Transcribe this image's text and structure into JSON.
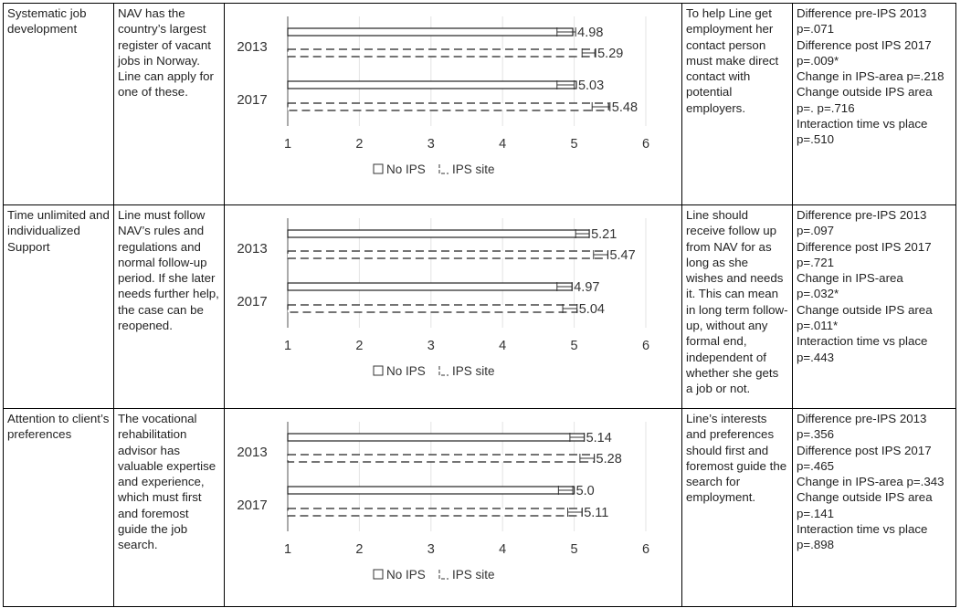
{
  "rows": [
    {
      "label": "Systematic job development",
      "practice": "NAV has the country’s largest register of vacant jobs in Norway. Line can apply for one of these.",
      "ideal": "To help Line get employment her contact person must make direct contact with potential employers.",
      "stats": [
        "Difference pre-IPS 2013",
        "p=.071",
        "Difference post IPS 2017",
        "p=.009*",
        "Change in IPS-area p=.218",
        "Change outside IPS area",
        "p=. p=.716",
        "Interaction time vs place",
        "p=.510"
      ]
    },
    {
      "label": "Time unlimited and individualized Support",
      "practice": "Line must follow NAV’s rules and regulations and normal follow-up period. If she later needs further help, the case can be reopened.",
      "ideal": "Line should receive follow up from NAV for as long as she wishes and needs it. This can mean in long term follow-up, without any formal end, independent of whether she gets a job or not.",
      "stats": [
        "Difference pre-IPS 2013",
        "p=.097",
        "Difference post IPS 2017",
        "p=.721",
        "Change in IPS-area",
        "p=.032*",
        "Change outside IPS area",
        "p=.011*",
        "Interaction time vs place",
        "p=.443"
      ]
    },
    {
      "label": "Attention to client’s preferences",
      "practice": "The vocational rehabilitation advisor has valuable expertise and experience, which must first and foremost guide the job search.",
      "ideal": "Line’s interests and preferences should first and foremost guide the search for employment.",
      "stats": [
        "Difference pre-IPS 2013",
        "p=.356",
        "Difference post IPS 2017",
        "p=.465",
        "Change in IPS-area p=.343",
        "Change outside IPS area",
        "p=.141",
        "Interaction time vs place",
        "p=.898"
      ]
    }
  ],
  "chart_data": [
    {
      "type": "bar",
      "orientation": "horizontal",
      "categories": [
        "2013",
        "2017"
      ],
      "series": [
        {
          "name": "No IPS",
          "values": [
            4.98,
            5.03
          ]
        },
        {
          "name": "IPS site",
          "values": [
            5.29,
            5.48
          ]
        }
      ],
      "value_labels": [
        [
          "4.98",
          "5.03"
        ],
        [
          "5.29",
          "5.48"
        ]
      ],
      "error_bars": [
        [
          [
            4.76,
            5.02
          ],
          [
            4.76,
            5.0
          ]
        ],
        [
          [
            5.11,
            5.3
          ],
          [
            5.25,
            5.5
          ]
        ]
      ],
      "xlim": [
        1,
        6
      ],
      "xticks": [
        "1",
        "2",
        "3",
        "4",
        "5",
        "6"
      ],
      "grid": true,
      "legend": "bottom"
    },
    {
      "type": "bar",
      "orientation": "horizontal",
      "categories": [
        "2013",
        "2017"
      ],
      "series": [
        {
          "name": "No IPS",
          "values": [
            5.21,
            4.97
          ]
        },
        {
          "name": "IPS site",
          "values": [
            5.47,
            5.04
          ]
        }
      ],
      "value_labels": [
        [
          "5.21",
          "4.97"
        ],
        [
          "5.47",
          "5.04"
        ]
      ],
      "error_bars": [
        [
          [
            5.02,
            5.21
          ],
          [
            4.76,
            4.97
          ]
        ],
        [
          [
            5.27,
            5.47
          ],
          [
            4.84,
            5.04
          ]
        ]
      ],
      "xlim": [
        1,
        6
      ],
      "xticks": [
        "1",
        "2",
        "3",
        "4",
        "5",
        "6"
      ],
      "grid": true,
      "legend": "bottom"
    },
    {
      "type": "bar",
      "orientation": "horizontal",
      "categories": [
        "2013",
        "2017"
      ],
      "series": [
        {
          "name": "No IPS",
          "values": [
            5.14,
            5.0
          ]
        },
        {
          "name": "IPS site",
          "values": [
            5.28,
            5.11
          ]
        }
      ],
      "value_labels": [
        [
          "5.14",
          "5.0"
        ],
        [
          "5.28",
          "5.11"
        ]
      ],
      "error_bars": [
        [
          [
            4.94,
            5.14
          ],
          [
            4.78,
            4.98
          ]
        ],
        [
          [
            5.08,
            5.28
          ],
          [
            4.91,
            5.11
          ]
        ]
      ],
      "xlim": [
        1,
        6
      ],
      "xticks": [
        "1",
        "2",
        "3",
        "4",
        "5",
        "6"
      ],
      "grid": true,
      "legend": "bottom"
    }
  ]
}
